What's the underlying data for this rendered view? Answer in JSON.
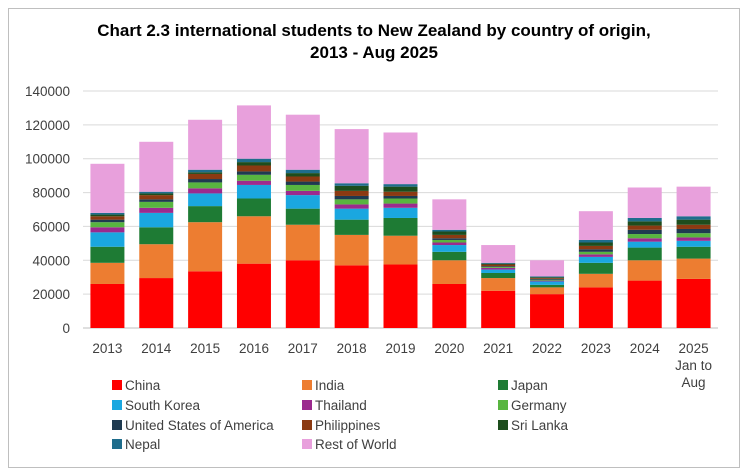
{
  "chart_data": {
    "type": "bar",
    "stacked": true,
    "title_line1": "Chart 2.3  international students to New Zealand by country of origin,",
    "title_line2": "2013 - Aug 2025",
    "categories": [
      {
        "label": [
          "2013"
        ]
      },
      {
        "label": [
          "2014"
        ]
      },
      {
        "label": [
          "2015"
        ]
      },
      {
        "label": [
          "2016"
        ]
      },
      {
        "label": [
          "2017"
        ]
      },
      {
        "label": [
          "2018"
        ]
      },
      {
        "label": [
          "2019"
        ]
      },
      {
        "label": [
          "2020"
        ]
      },
      {
        "label": [
          "2021"
        ]
      },
      {
        "label": [
          "2022"
        ]
      },
      {
        "label": [
          "2023"
        ]
      },
      {
        "label": [
          "2024"
        ]
      },
      {
        "label": [
          "2025",
          "Jan to",
          "Aug"
        ]
      }
    ],
    "ylim": [
      0,
      140000
    ],
    "yticks": [
      "0",
      "20000",
      "40000",
      "60000",
      "80000",
      "100000",
      "120000",
      "140000"
    ],
    "grid": true,
    "legend_position": "bottom",
    "series": [
      {
        "name": "China",
        "color": "#ff0000",
        "values": [
          26000,
          29500,
          33500,
          38000,
          40000,
          37000,
          37500,
          26000,
          22000,
          20000,
          24000,
          28000,
          29000
        ]
      },
      {
        "name": "India",
        "color": "#ed7d31",
        "values": [
          12500,
          20000,
          29000,
          28000,
          21000,
          18000,
          17000,
          14000,
          7500,
          4000,
          8000,
          12000,
          12000
        ]
      },
      {
        "name": "Japan",
        "color": "#1e7b34",
        "values": [
          9500,
          10000,
          9500,
          10500,
          9500,
          9000,
          10500,
          5000,
          3000,
          1500,
          6500,
          7500,
          7000
        ]
      },
      {
        "name": "South Korea",
        "color": "#1aa7e0",
        "values": [
          8500,
          8500,
          7500,
          8000,
          8000,
          6500,
          6000,
          4000,
          2000,
          2000,
          3500,
          3500,
          3500
        ]
      },
      {
        "name": "Thailand",
        "color": "#9b2a8e",
        "values": [
          3000,
          3000,
          3000,
          2500,
          2500,
          2500,
          2500,
          1500,
          1000,
          500,
          1500,
          2000,
          2000
        ]
      },
      {
        "name": "Germany",
        "color": "#58b540",
        "values": [
          3000,
          3500,
          3500,
          3500,
          3500,
          3000,
          3000,
          1500,
          500,
          500,
          1500,
          2500,
          2500
        ]
      },
      {
        "name": "United States of America",
        "color": "#1f3a50",
        "values": [
          1500,
          1500,
          2000,
          2000,
          2000,
          2000,
          1500,
          1000,
          500,
          500,
          1500,
          2500,
          2500
        ]
      },
      {
        "name": "Philippines",
        "color": "#8b3a12",
        "values": [
          2000,
          2500,
          3000,
          3500,
          3000,
          3000,
          2500,
          2000,
          1000,
          500,
          2000,
          2500,
          2500
        ]
      },
      {
        "name": "Sri Lanka",
        "color": "#1d4d1d",
        "values": [
          1000,
          1000,
          1000,
          2000,
          2000,
          3000,
          3000,
          2000,
          500,
          500,
          2000,
          2500,
          3000
        ]
      },
      {
        "name": "Nepal",
        "color": "#1f6d8c",
        "values": [
          1000,
          1000,
          1500,
          2000,
          2000,
          1500,
          1500,
          1000,
          500,
          500,
          1500,
          2000,
          2000
        ]
      },
      {
        "name": "Rest of World",
        "color": "#e8a0dc",
        "values": [
          29000,
          29500,
          29500,
          31500,
          32500,
          32000,
          30500,
          18000,
          10500,
          9500,
          17000,
          18000,
          17500
        ]
      }
    ]
  }
}
